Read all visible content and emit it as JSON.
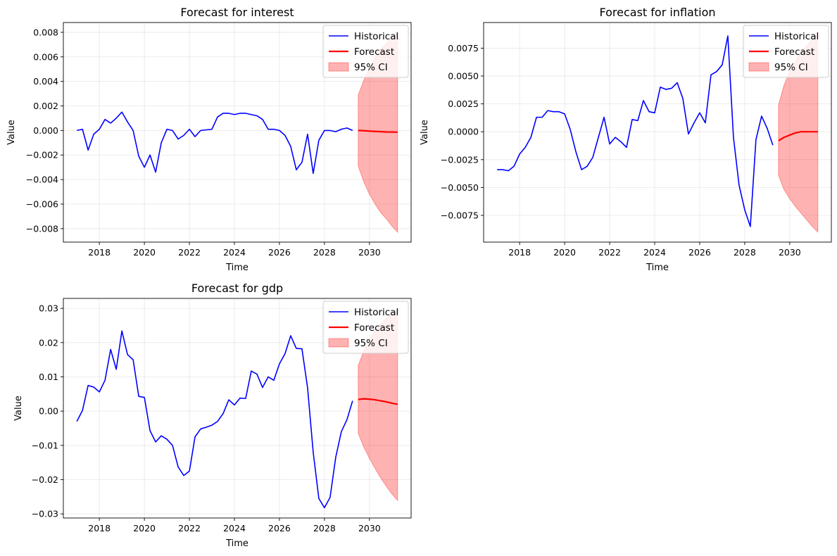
{
  "chart_data": [
    {
      "type": "line",
      "title": "Forecast for interest",
      "xlabel": "Time",
      "ylabel": "Value",
      "xlim": [
        2016.4,
        2031.85
      ],
      "ylim": [
        -0.0091,
        0.0088
      ],
      "xticks": [
        2018,
        2020,
        2022,
        2024,
        2026,
        2028,
        2030
      ],
      "xtick_labels": [
        "2018",
        "2020",
        "2022",
        "2024",
        "2026",
        "2028",
        "2030"
      ],
      "yticks": [
        -0.008,
        -0.006,
        -0.004,
        -0.002,
        0.0,
        0.002,
        0.004,
        0.006,
        0.008
      ],
      "ytick_labels": [
        "−0.008",
        "−0.006",
        "−0.004",
        "−0.002",
        "0.000",
        "0.002",
        "0.004",
        "0.006",
        "0.008"
      ],
      "grid": true,
      "legend_position": "top-right",
      "series": [
        {
          "name": "Historical",
          "color": "#0000ff",
          "style": "line",
          "x": [
            2017.0,
            2017.25,
            2017.5,
            2017.75,
            2018.0,
            2018.25,
            2018.5,
            2018.75,
            2019.0,
            2019.25,
            2019.5,
            2019.75,
            2020.0,
            2020.25,
            2020.5,
            2020.75,
            2021.0,
            2021.25,
            2021.5,
            2021.75,
            2022.0,
            2022.25,
            2022.5,
            2022.75,
            2023.0,
            2023.25,
            2023.5,
            2023.75,
            2024.0,
            2024.25,
            2024.5,
            2024.75,
            2025.0,
            2025.25,
            2025.5,
            2025.75,
            2026.0,
            2026.25,
            2026.5,
            2026.75,
            2027.0,
            2027.25,
            2027.5,
            2027.75,
            2028.0,
            2028.25,
            2028.5,
            2028.75,
            2029.0,
            2029.25
          ],
          "y": [
            0.0,
            0.0001,
            -0.0016,
            -0.0003,
            0.0001,
            0.0009,
            0.0006,
            0.001,
            0.0015,
            0.0007,
            0.0,
            -0.0021,
            -0.003,
            -0.002,
            -0.0034,
            -0.001,
            0.0001,
            0.0,
            -0.0007,
            -0.0004,
            0.0001,
            -0.0005,
            0.0,
            5e-05,
            0.0001,
            0.0011,
            0.0014,
            0.0014,
            0.0013,
            0.0014,
            0.0014,
            0.0013,
            0.0012,
            0.0009,
            0.0001,
            0.0001,
            0.0,
            -0.0004,
            -0.0013,
            -0.0032,
            -0.0026,
            -0.0003,
            -0.0035,
            -0.0008,
            0.0,
            0.0,
            -0.0001,
            0.0001,
            0.0002,
            0.0
          ]
        },
        {
          "name": "Forecast",
          "color": "#ff0000",
          "style": "line",
          "x": [
            2029.5,
            2029.75,
            2030.0,
            2030.25,
            2030.5,
            2030.75,
            2031.0,
            2031.25
          ],
          "y": [
            0.0,
            -2e-05,
            -5e-05,
            -8e-05,
            -0.0001,
            -0.00012,
            -0.00013,
            -0.00014
          ]
        },
        {
          "name": "95% CI",
          "color": "#ff0000",
          "style": "band",
          "x": [
            2029.5,
            2029.75,
            2030.0,
            2030.25,
            2030.5,
            2030.75,
            2031.0,
            2031.25
          ],
          "lower": [
            -0.0029,
            -0.0042,
            -0.0052,
            -0.006,
            -0.0067,
            -0.0072,
            -0.0078,
            -0.0083
          ],
          "upper": [
            0.0029,
            0.0041,
            0.0051,
            0.0059,
            0.0066,
            0.0071,
            0.0076,
            0.0081
          ]
        }
      ]
    },
    {
      "type": "line",
      "title": "Forecast for inflation",
      "xlabel": "Time",
      "ylabel": "Value",
      "xlim": [
        2016.4,
        2031.85
      ],
      "ylim": [
        -0.0099,
        0.0098
      ],
      "xticks": [
        2018,
        2020,
        2022,
        2024,
        2026,
        2028,
        2030
      ],
      "xtick_labels": [
        "2018",
        "2020",
        "2022",
        "2024",
        "2026",
        "2028",
        "2030"
      ],
      "yticks": [
        -0.0075,
        -0.005,
        -0.0025,
        0.0,
        0.0025,
        0.005,
        0.0075
      ],
      "ytick_labels": [
        "−0.0075",
        "−0.0050",
        "−0.0025",
        "0.0000",
        "0.0025",
        "0.0050",
        "0.0075"
      ],
      "grid": true,
      "legend_position": "top-right",
      "series": [
        {
          "name": "Historical",
          "color": "#0000ff",
          "style": "line",
          "x": [
            2017.0,
            2017.25,
            2017.5,
            2017.75,
            2018.0,
            2018.25,
            2018.5,
            2018.75,
            2019.0,
            2019.25,
            2019.5,
            2019.75,
            2020.0,
            2020.25,
            2020.5,
            2020.75,
            2021.0,
            2021.25,
            2021.5,
            2021.75,
            2022.0,
            2022.25,
            2022.5,
            2022.75,
            2023.0,
            2023.25,
            2023.5,
            2023.75,
            2024.0,
            2024.25,
            2024.5,
            2024.75,
            2025.0,
            2025.25,
            2025.5,
            2025.75,
            2026.0,
            2026.25,
            2026.5,
            2026.75,
            2027.0,
            2027.25,
            2027.5,
            2027.75,
            2028.0,
            2028.25,
            2028.5,
            2028.75,
            2029.0,
            2029.25
          ],
          "y": [
            -0.0034,
            -0.0034,
            -0.0035,
            -0.0031,
            -0.002,
            -0.0014,
            -0.0005,
            0.0013,
            0.0013,
            0.0019,
            0.0018,
            0.0018,
            0.0016,
            0.0002,
            -0.0018,
            -0.0034,
            -0.0031,
            -0.0023,
            -0.0005,
            0.0013,
            -0.0011,
            -0.0005,
            -0.0009,
            -0.0014,
            0.0011,
            0.001,
            0.0028,
            0.0018,
            0.0017,
            0.004,
            0.0038,
            0.0039,
            0.0044,
            0.003,
            -0.0002,
            0.0008,
            0.0017,
            0.0008,
            0.0051,
            0.0054,
            0.006,
            0.0086,
            -0.0005,
            -0.0048,
            -0.007,
            -0.0085,
            -0.0007,
            0.0014,
            0.0003,
            -0.0012
          ]
        },
        {
          "name": "Forecast",
          "color": "#ff0000",
          "style": "line",
          "x": [
            2029.5,
            2029.75,
            2030.0,
            2030.25,
            2030.5,
            2030.75,
            2031.0,
            2031.25
          ],
          "y": [
            -0.0008,
            -0.0005,
            -0.0003,
            -0.0001,
            0.0,
            0.0,
            0.0,
            0.0
          ]
        },
        {
          "name": "95% CI",
          "color": "#ff0000",
          "style": "band",
          "x": [
            2029.5,
            2029.75,
            2030.0,
            2030.25,
            2030.5,
            2030.75,
            2031.0,
            2031.25
          ],
          "lower": [
            -0.0039,
            -0.0052,
            -0.006,
            -0.0067,
            -0.0073,
            -0.0079,
            -0.0085,
            -0.009
          ],
          "upper": [
            0.0024,
            0.0042,
            0.0054,
            0.0063,
            0.0071,
            0.0077,
            0.0083,
            0.0088
          ]
        }
      ]
    },
    {
      "type": "line",
      "title": "Forecast for gdp",
      "xlabel": "Time",
      "ylabel": "Value",
      "xlim": [
        2016.4,
        2031.85
      ],
      "ylim": [
        -0.0312,
        0.0329
      ],
      "xticks": [
        2018,
        2020,
        2022,
        2024,
        2026,
        2028,
        2030
      ],
      "xtick_labels": [
        "2018",
        "2020",
        "2022",
        "2024",
        "2026",
        "2028",
        "2030"
      ],
      "yticks": [
        -0.03,
        -0.02,
        -0.01,
        0.0,
        0.01,
        0.02,
        0.03
      ],
      "ytick_labels": [
        "−0.03",
        "−0.02",
        "−0.01",
        "0.00",
        "0.01",
        "0.02",
        "0.03"
      ],
      "grid": true,
      "legend_position": "top-right",
      "series": [
        {
          "name": "Historical",
          "color": "#0000ff",
          "style": "line",
          "x": [
            2017.0,
            2017.25,
            2017.5,
            2017.75,
            2018.0,
            2018.25,
            2018.5,
            2018.75,
            2019.0,
            2019.25,
            2019.5,
            2019.75,
            2020.0,
            2020.25,
            2020.5,
            2020.75,
            2021.0,
            2021.25,
            2021.5,
            2021.75,
            2022.0,
            2022.25,
            2022.5,
            2022.75,
            2023.0,
            2023.25,
            2023.5,
            2023.75,
            2024.0,
            2024.25,
            2024.5,
            2024.75,
            2025.0,
            2025.25,
            2025.5,
            2025.75,
            2026.0,
            2026.25,
            2026.5,
            2026.75,
            2027.0,
            2027.25,
            2027.5,
            2027.75,
            2028.0,
            2028.25,
            2028.5,
            2028.75,
            2029.0,
            2029.25
          ],
          "y": [
            -0.003,
            0.0002,
            0.0075,
            0.007,
            0.0056,
            0.009,
            0.018,
            0.0122,
            0.0234,
            0.0165,
            0.015,
            0.0043,
            0.004,
            -0.0057,
            -0.009,
            -0.0072,
            -0.0082,
            -0.01,
            -0.0163,
            -0.0188,
            -0.0175,
            -0.0075,
            -0.0052,
            -0.0047,
            -0.0041,
            -0.003,
            -0.0007,
            0.0033,
            0.0018,
            0.0038,
            0.0037,
            0.0117,
            0.0108,
            0.0069,
            0.01,
            0.009,
            0.0138,
            0.0168,
            0.022,
            0.0183,
            0.0182,
            0.0068,
            -0.012,
            -0.0255,
            -0.0282,
            -0.0252,
            -0.0135,
            -0.006,
            -0.0025,
            0.003
          ]
        },
        {
          "name": "Forecast",
          "color": "#ff0000",
          "style": "line",
          "x": [
            2029.5,
            2029.75,
            2030.0,
            2030.25,
            2030.5,
            2030.75,
            2031.0,
            2031.25
          ],
          "y": [
            0.0034,
            0.0036,
            0.0035,
            0.0033,
            0.003,
            0.0027,
            0.0023,
            0.002
          ]
        },
        {
          "name": "95% CI",
          "color": "#ff0000",
          "style": "band",
          "x": [
            2029.5,
            2029.75,
            2030.0,
            2030.25,
            2030.5,
            2030.75,
            2031.0,
            2031.25
          ],
          "lower": [
            -0.0065,
            -0.0105,
            -0.0138,
            -0.0168,
            -0.0195,
            -0.022,
            -0.0242,
            -0.0261
          ],
          "upper": [
            0.0133,
            0.0176,
            0.0209,
            0.0234,
            0.0254,
            0.0271,
            0.0285,
            0.0298
          ]
        }
      ]
    }
  ]
}
